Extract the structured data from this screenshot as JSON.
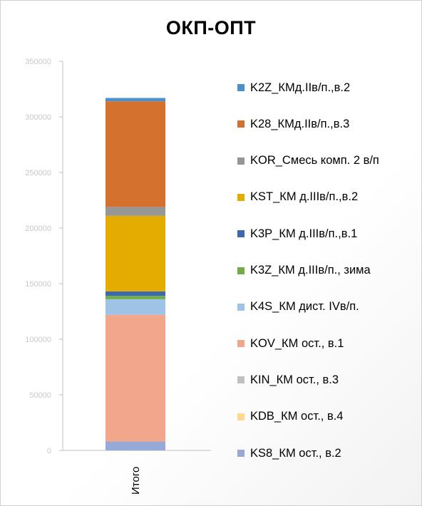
{
  "chart_data": {
    "type": "bar",
    "title": "ОКП-ОПТ",
    "categories": [
      "Итого"
    ],
    "ylim": [
      0,
      350000
    ],
    "yticks": [
      0,
      50000,
      100000,
      150000,
      200000,
      250000,
      300000,
      350000
    ],
    "grid": false,
    "legend_position": "right",
    "series": [
      {
        "name": "KS8_КМ ост., в.2",
        "color": "#97a9d7",
        "values": [
          8000
        ]
      },
      {
        "name": "KDB_КМ ост., в.4",
        "color": "#ffd88f",
        "values": [
          0
        ]
      },
      {
        "name": "KIN_КМ ост., в.3",
        "color": "#c0c0c0",
        "values": [
          0
        ]
      },
      {
        "name": "KOV_КМ ост., в.1",
        "color": "#f2a78c",
        "values": [
          114000
        ]
      },
      {
        "name": "K4S_КМ дист. IVв/п.",
        "color": "#9fc3e7",
        "values": [
          14000
        ]
      },
      {
        "name": "K3Z_КМ д.IIIв/п., зима",
        "color": "#70ad47",
        "values": [
          3000
        ]
      },
      {
        "name": "K3P_КМ д.IIIв/п.,в.1",
        "color": "#3e68ad",
        "values": [
          4000
        ]
      },
      {
        "name": "KST_КМ д.IIIв/п.,в.2",
        "color": "#e5ac00",
        "values": [
          68000
        ]
      },
      {
        "name": "KOR_Смесь комп. 2 в/п",
        "color": "#969696",
        "values": [
          8000
        ]
      },
      {
        "name": "K28_КМд.IIв/п.,в.3",
        "color": "#d5712e",
        "values": [
          95000
        ]
      },
      {
        "name": "K2Z_КМд.IIв/п.,в.2",
        "color": "#4a90c9",
        "values": [
          3000
        ]
      }
    ]
  }
}
